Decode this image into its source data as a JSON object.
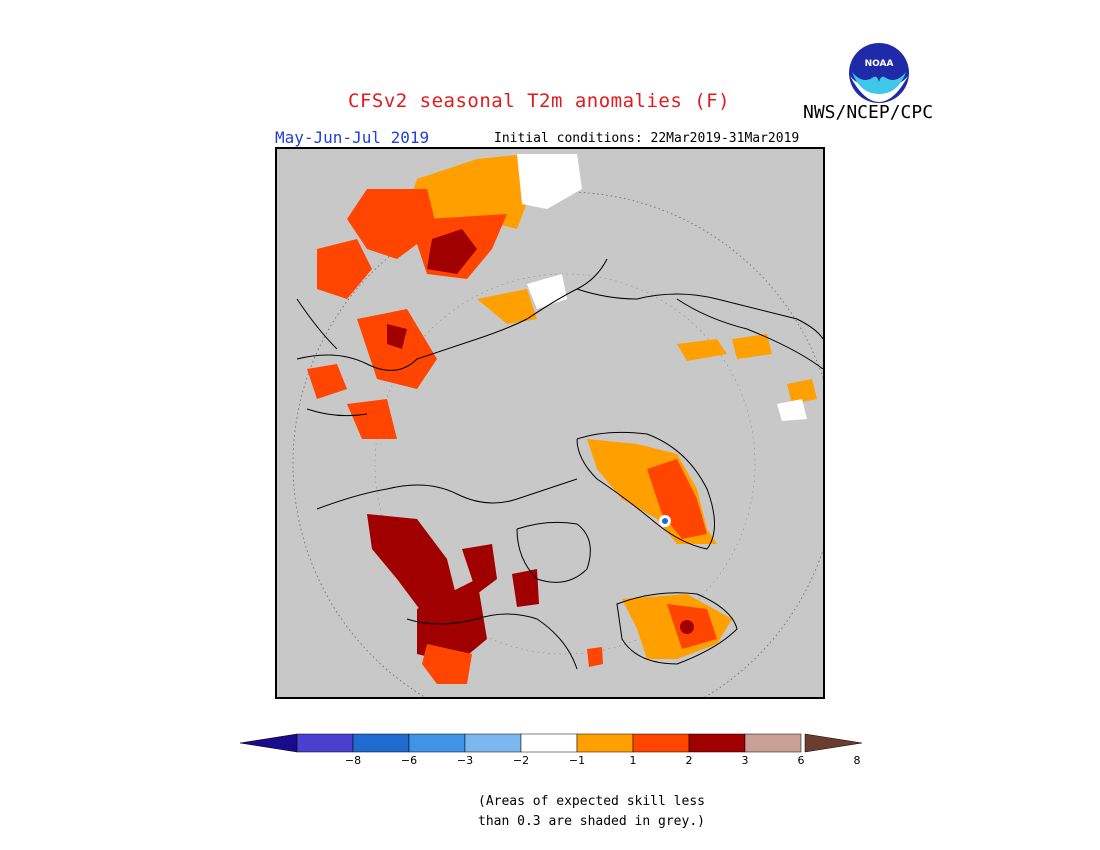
{
  "title": "CFSv2 seasonal T2m anomalies (F)",
  "agency": "NWS/NCEP/CPC",
  "logo_text": "NOAA",
  "period": "May-Jun-Jul 2019",
  "initial_conditions": "Initial conditions: 22Mar2019-31Mar2019",
  "colors": {
    "title": "#e31a1c",
    "period": "#1f3fd6",
    "masked_grey": "#c8c8c8",
    "bins": [
      "#1a0a8c",
      "#4a3fcf",
      "#1f6bd1",
      "#3f94e8",
      "#7cb8f0",
      "#ffffff",
      "#ffa000",
      "#ff4500",
      "#a00000",
      "#c8a096",
      "#6b3d2e"
    ]
  },
  "legend": {
    "ticks": [
      "−8",
      "−6",
      "−3",
      "−2",
      "−1",
      "1",
      "2",
      "3",
      "6",
      "8"
    ]
  },
  "note": {
    "line1": "(Areas of expected skill less",
    "line2": "than 0.3 are shaded in grey.)"
  }
}
